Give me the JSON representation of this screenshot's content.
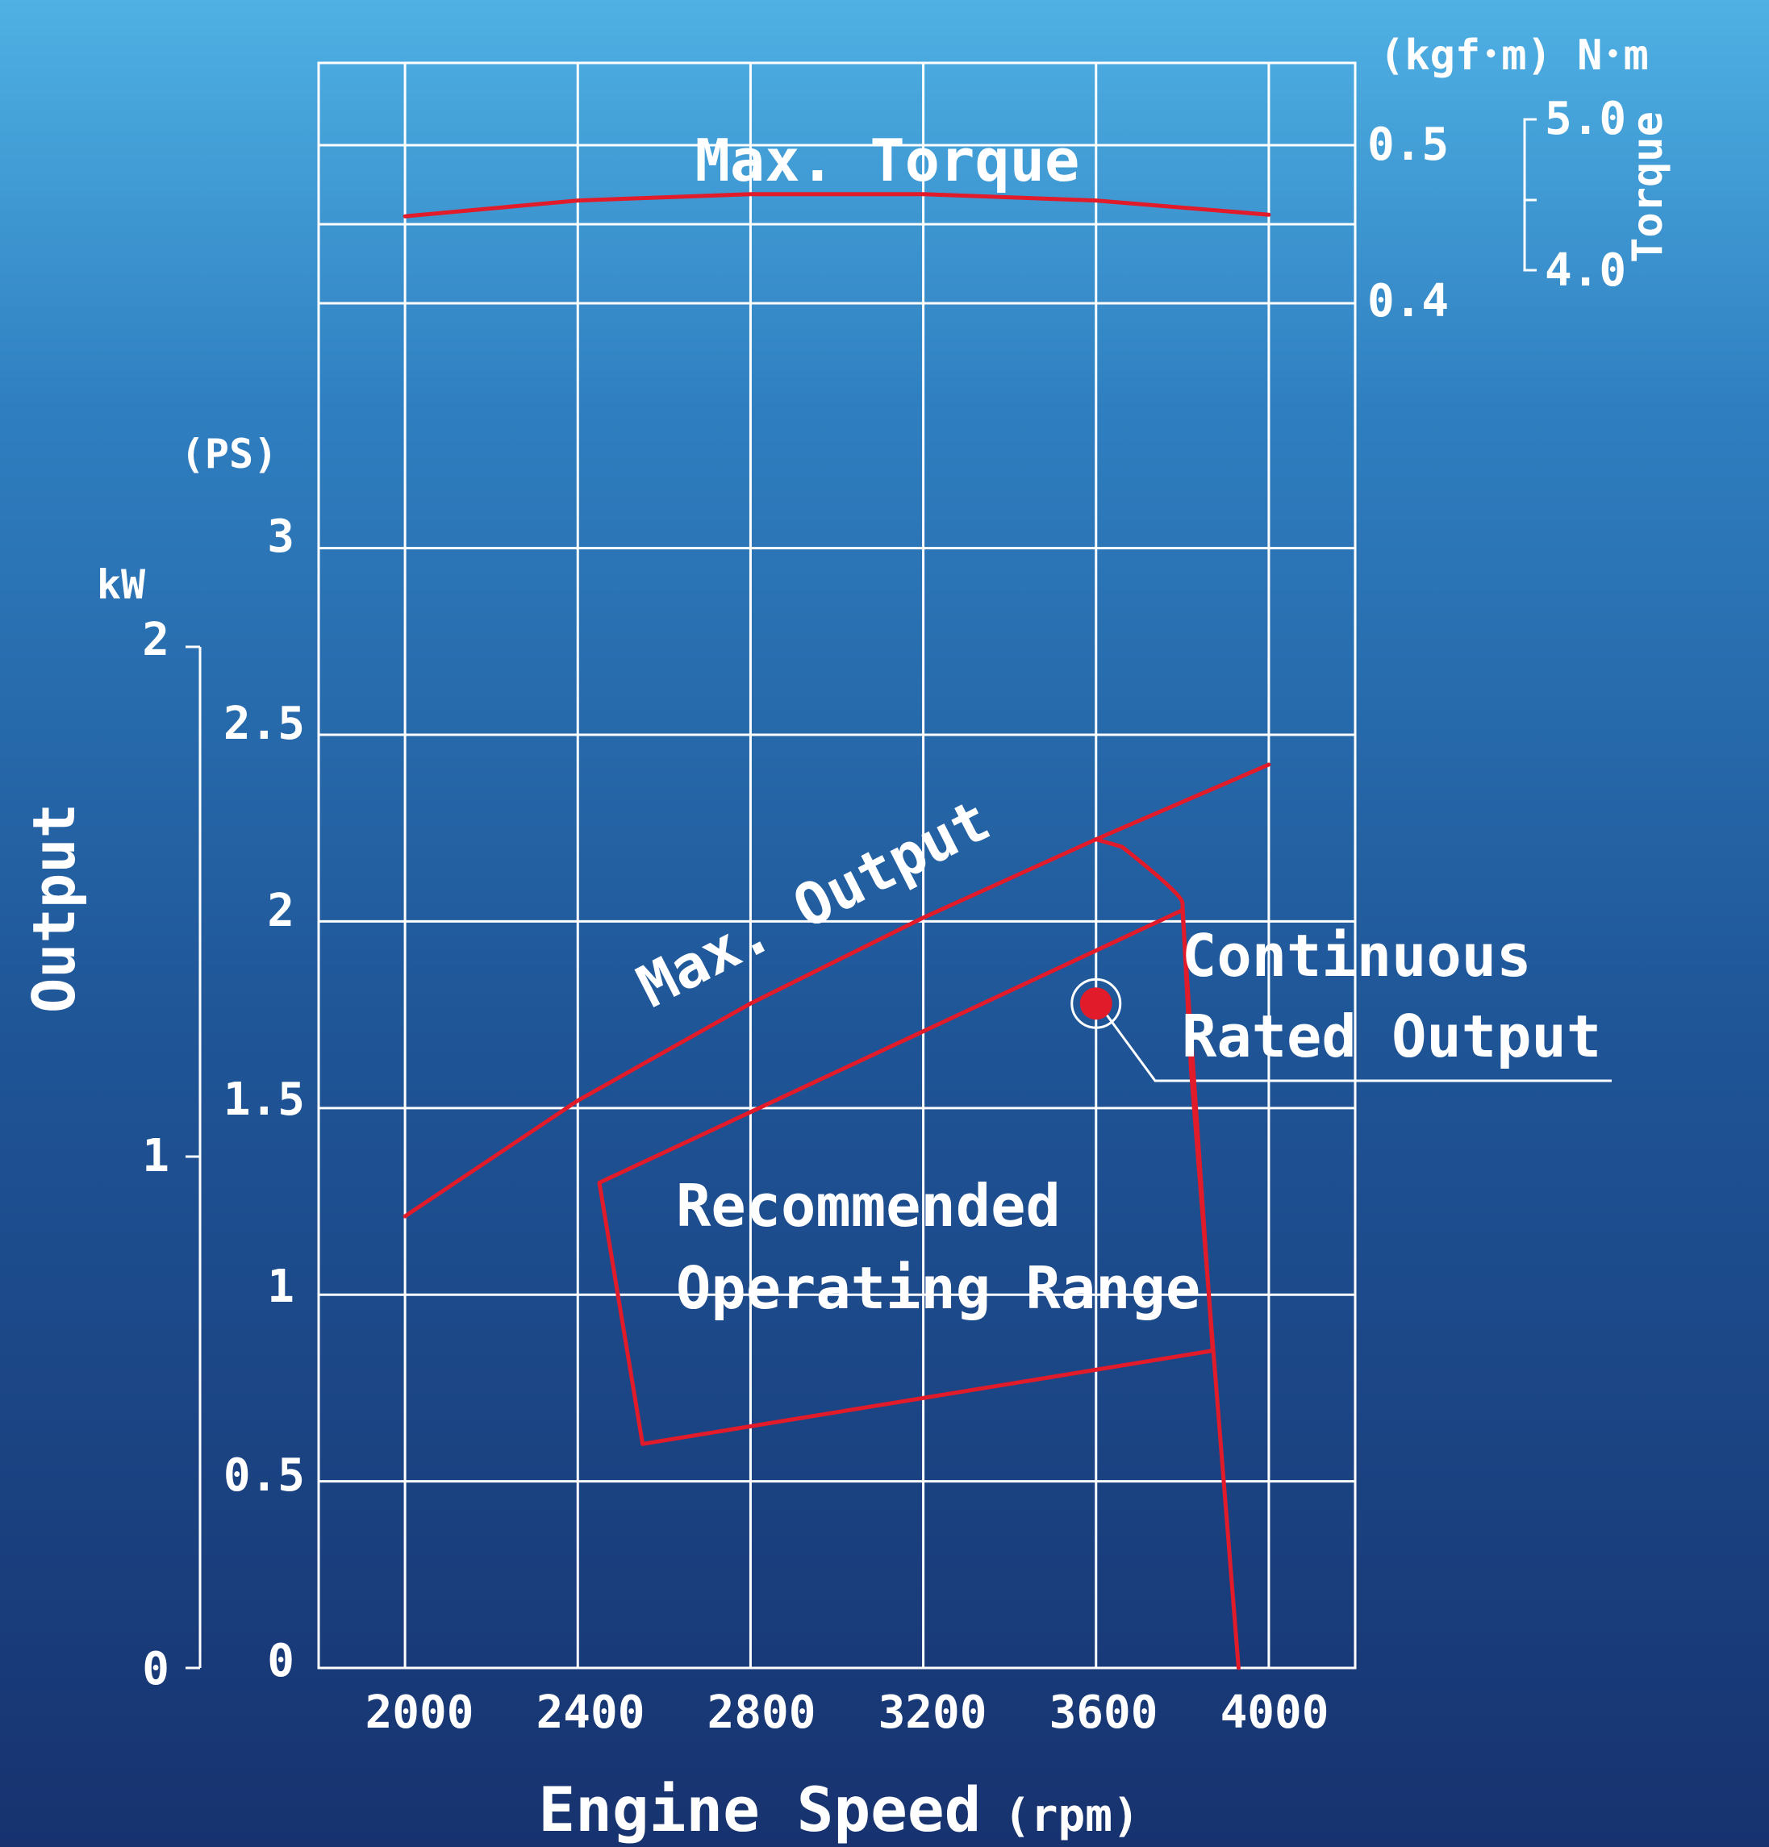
{
  "colors": {
    "background_top": "#4fb1e4",
    "background_bottom": "#17326f",
    "grid": "#ffffff",
    "curve": "#e11b2a"
  },
  "chart_data": {
    "type": "line",
    "xlabel": "Engine Speed",
    "xlabel_unit": "(rpm)",
    "x_ticks": [
      "2000",
      "2400",
      "2800",
      "3200",
      "3600",
      "4000"
    ],
    "xlim": [
      1800,
      4200
    ],
    "left_axis": {
      "title": "Output",
      "unit_ps": "(PS)",
      "unit_kw": "kW",
      "ps_ticks": [
        "0",
        "0.5",
        "1",
        "1.5",
        "2",
        "2.5",
        "3"
      ],
      "kw_ticks": [
        "0",
        "1",
        "2"
      ],
      "ylim_ps": [
        0,
        4.3
      ]
    },
    "right_axis": {
      "title": "Torque",
      "unit_label": "(kgf･m) N･m",
      "kgfm_ticks": [
        "0.4",
        "0.5"
      ],
      "nm_ticks": [
        "4.0",
        "5.0"
      ]
    },
    "series": [
      {
        "name": "Max. Torque",
        "x": [
          2000,
          2400,
          2800,
          3200,
          3600,
          4000
        ],
        "y": [
          0.455,
          0.465,
          0.469,
          0.469,
          0.465,
          0.456
        ],
        "unit": "kgf·m"
      },
      {
        "name": "Max. Output",
        "x": [
          2000,
          2400,
          2800,
          3200,
          3600,
          4000
        ],
        "y": [
          1.21,
          1.52,
          1.78,
          2.01,
          2.22,
          2.42
        ],
        "unit": "PS"
      },
      {
        "name": "Recommended Operating Range",
        "x": [
          2450,
          3800,
          3870,
          2550,
          2450
        ],
        "y": [
          1.3,
          2.03,
          0.85,
          0.6,
          1.3
        ],
        "unit": "PS"
      }
    ],
    "governor_line": {
      "x": [
        3600,
        3660,
        3800,
        3820,
        3930
      ],
      "y": [
        2.22,
        2.2,
        2.05,
        1.6,
        0
      ]
    },
    "rated_point": {
      "x": 3600,
      "y": 1.78
    },
    "annotations": [
      "Max. Torque",
      "Max. Output",
      "Continuous",
      "Rated Output",
      "Recommended",
      "Operating Range"
    ]
  }
}
